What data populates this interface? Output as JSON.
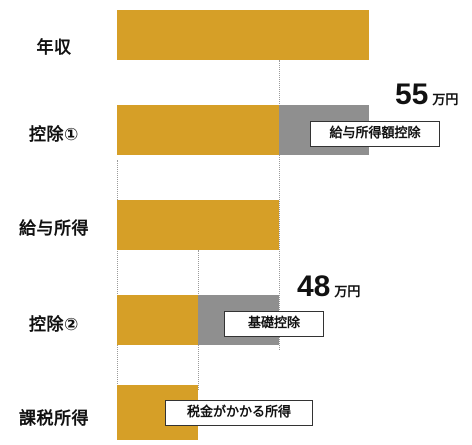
{
  "rows": [
    {
      "label": "年収"
    },
    {
      "label": "控除①"
    },
    {
      "label": "給与所得"
    },
    {
      "label": "控除②"
    },
    {
      "label": "課税所得"
    }
  ],
  "tags": {
    "deduction1": "給与所得額控除",
    "deduction2": "基礎控除",
    "taxable": "税金がかかる所得"
  },
  "amounts": {
    "deduction1": {
      "value": "55",
      "unit": "万円"
    },
    "deduction2": {
      "value": "48",
      "unit": "万円"
    }
  },
  "colors": {
    "income": "#d69f27",
    "deduction": "#8f8f8f"
  }
}
